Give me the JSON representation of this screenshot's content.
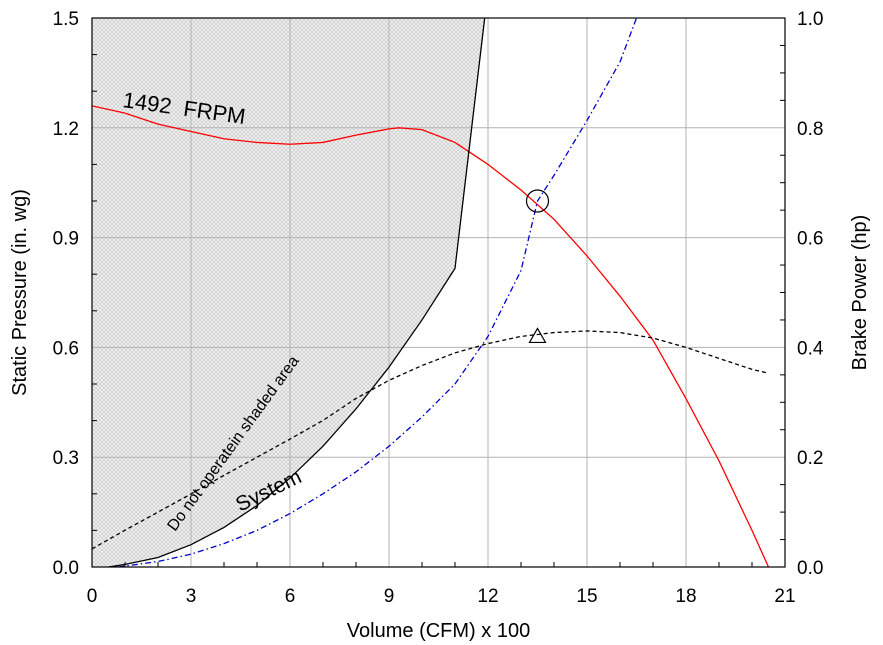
{
  "chart_data": {
    "type": "line",
    "xlabel": "Volume (CFM) x 100",
    "ylabel": "Static Pressure (in. wg)",
    "y2label": "Brake Power (hp)",
    "xlim": [
      0,
      21
    ],
    "ylim": [
      0,
      1.5
    ],
    "y2lim": [
      0,
      1.0
    ],
    "xticks": [
      0,
      3,
      6,
      9,
      12,
      15,
      18,
      21
    ],
    "yticks": [
      0.0,
      0.3,
      0.6,
      0.9,
      1.2,
      1.5
    ],
    "y2ticks": [
      0.0,
      0.2,
      0.4,
      0.6,
      0.8,
      1.0
    ],
    "x_tick_labels": [
      "0",
      "3",
      "6",
      "9",
      "12",
      "15",
      "18",
      "21"
    ],
    "y_tick_labels": [
      "0.0",
      "0.3",
      "0.6",
      "0.9",
      "1.2",
      "1.5"
    ],
    "y2_tick_labels": [
      "0.0",
      "0.2",
      "0.4",
      "0.6",
      "0.8",
      "1.0"
    ],
    "grid": true,
    "annotations": {
      "fan_speed": "1492  FRPM",
      "system": "System",
      "shaded_warning": "Do not operatein shaded area"
    },
    "series": [
      {
        "axis": "left",
        "color": "#ff0000",
        "style": "solid",
        "x": [
          0,
          1,
          2,
          3,
          4,
          5,
          6,
          7,
          8,
          9,
          9.3,
          10,
          11,
          12,
          13,
          14,
          15,
          16,
          17,
          18,
          19,
          20,
          20.5
        ],
        "y": [
          1.26,
          1.24,
          1.21,
          1.19,
          1.17,
          1.16,
          1.155,
          1.16,
          1.18,
          1.197,
          1.2,
          1.195,
          1.16,
          1.1,
          1.03,
          0.95,
          0.85,
          0.74,
          0.62,
          0.46,
          0.29,
          0.1,
          0.0
        ]
      },
      {
        "axis": "left",
        "color": "#000000",
        "style": "solid",
        "x": [
          0.5,
          1,
          2,
          3,
          4,
          5,
          6,
          7,
          8,
          9,
          10,
          11,
          11.9
        ],
        "y": [
          0.0,
          0.007,
          0.026,
          0.061,
          0.108,
          0.168,
          0.243,
          0.33,
          0.432,
          0.546,
          0.675,
          0.816,
          1.5
        ]
      },
      {
        "axis": "right",
        "color": "#000000",
        "style": "dashed",
        "x": [
          0,
          1,
          2,
          3,
          4,
          5,
          6,
          7,
          8,
          9,
          10,
          11,
          12,
          13,
          14,
          15,
          16,
          17,
          18,
          19,
          20,
          20.5
        ],
        "y": [
          0.033,
          0.067,
          0.1,
          0.133,
          0.167,
          0.2,
          0.233,
          0.267,
          0.307,
          0.34,
          0.367,
          0.39,
          0.407,
          0.42,
          0.427,
          0.43,
          0.427,
          0.417,
          0.4,
          0.38,
          0.36,
          0.353
        ]
      },
      {
        "axis": "left",
        "color": "#0000cc",
        "style": "dashdot",
        "x": [
          0.8,
          2,
          3,
          4,
          5,
          6,
          7,
          8,
          9,
          10,
          11,
          12,
          13,
          13.5,
          14,
          15,
          16,
          16.5
        ],
        "y": [
          0.0,
          0.015,
          0.035,
          0.064,
          0.1,
          0.146,
          0.2,
          0.26,
          0.33,
          0.41,
          0.5,
          0.63,
          0.81,
          1.0,
          1.07,
          1.22,
          1.38,
          1.5
        ]
      }
    ],
    "markers": [
      {
        "shape": "circle",
        "axis": "left",
        "x": 13.5,
        "y": 1.0
      },
      {
        "shape": "triangle",
        "axis": "right",
        "x": 13.5,
        "y": 0.42
      }
    ]
  }
}
